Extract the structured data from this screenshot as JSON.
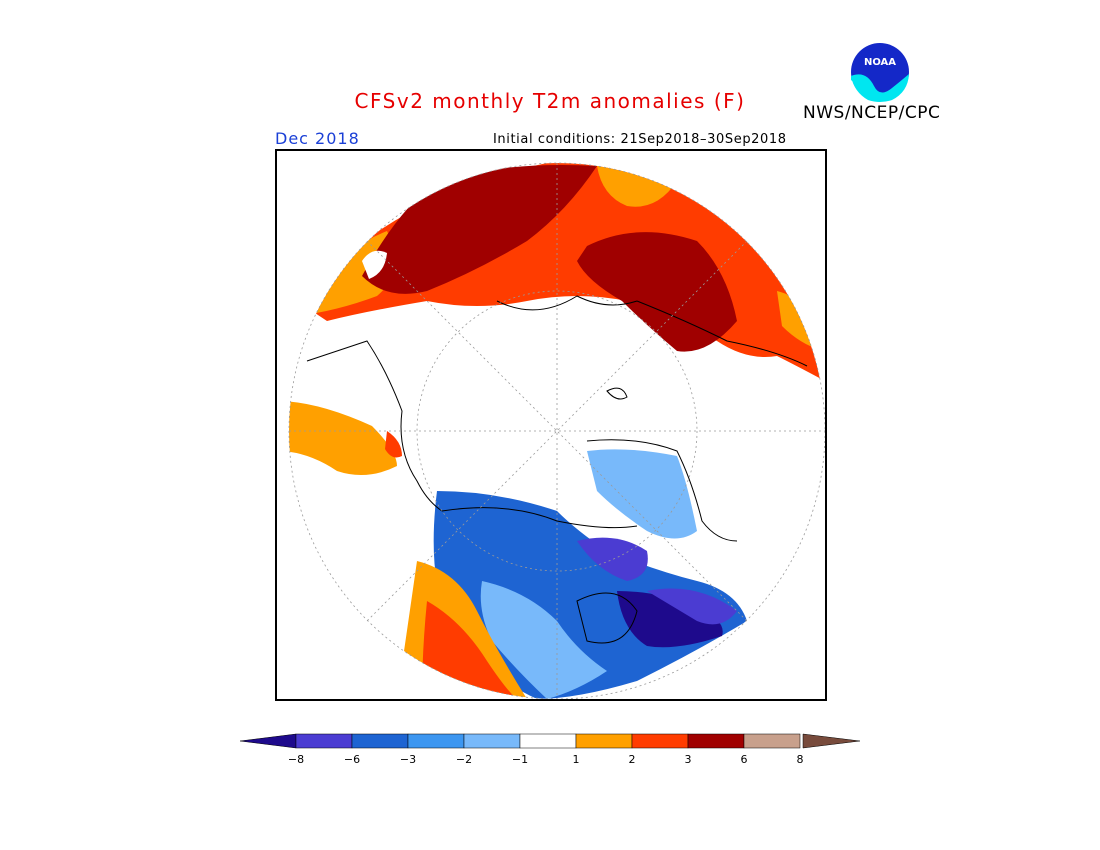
{
  "title": "CFSv2 monthly T2m anomalies (F)",
  "agency": "NWS/NCEP/CPC",
  "logo_text": "NOAA",
  "month": "Dec 2018",
  "initial_conditions": "Initial conditions: 21Sep2018–30Sep2018",
  "legend": {
    "colors": [
      "#1e0a8c",
      "#4b3cd2",
      "#1e64d2",
      "#3c96f0",
      "#78b9fa",
      "#ffffff",
      "#ffa000",
      "#ff3c00",
      "#a00000",
      "#c8a08c",
      "#784b3c"
    ],
    "ticks": [
      "−8",
      "−6",
      "−3",
      "−2",
      "−1",
      "1",
      "2",
      "3",
      "6",
      "8"
    ]
  }
}
